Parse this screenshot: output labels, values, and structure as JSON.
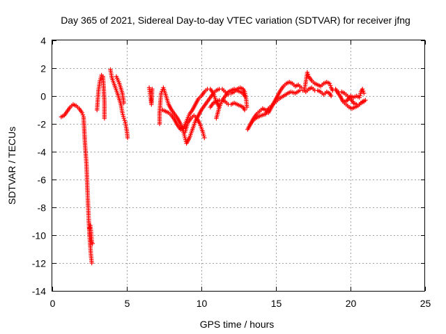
{
  "chart_data": {
    "type": "scatter",
    "title": "Day 365 of 2021, Sidereal Day-to-day VTEC variation (SDTVAR) for receiver jfng",
    "xlabel": "GPS time / hours",
    "ylabel": "SDTVAR / TECUs",
    "xlim": [
      0,
      25
    ],
    "ylim": [
      -14,
      4
    ],
    "xticks": [
      0,
      5,
      10,
      15,
      20,
      25
    ],
    "yticks": [
      -14,
      -12,
      -10,
      -8,
      -6,
      -4,
      -2,
      0,
      2,
      4
    ],
    "grid": true,
    "marker": "+",
    "color": "#ff0000",
    "series": [
      {
        "name": "SDTVAR",
        "segments": [
          [
            [
              0.6,
              -1.5
            ],
            [
              0.8,
              -1.4
            ],
            [
              1.0,
              -1.1
            ],
            [
              1.2,
              -0.8
            ],
            [
              1.4,
              -0.6
            ],
            [
              1.6,
              -0.7
            ],
            [
              1.8,
              -0.9
            ],
            [
              2.0,
              -1.2
            ],
            [
              2.1,
              -1.5
            ],
            [
              2.15,
              -2.5
            ],
            [
              2.2,
              -3.5
            ],
            [
              2.3,
              -5.0
            ],
            [
              2.35,
              -6.5
            ],
            [
              2.4,
              -7.8
            ],
            [
              2.45,
              -9.0
            ],
            [
              2.5,
              -10.0
            ],
            [
              2.55,
              -10.8
            ],
            [
              2.6,
              -11.5
            ],
            [
              2.65,
              -12.0
            ]
          ],
          [
            [
              2.5,
              -9.5
            ],
            [
              2.55,
              -9.3
            ],
            [
              2.6,
              -9.8
            ],
            [
              2.65,
              -10.5
            ],
            [
              2.7,
              -10.6
            ]
          ],
          [
            [
              3.0,
              -1.0
            ],
            [
              3.05,
              -0.3
            ],
            [
              3.1,
              0.4
            ],
            [
              3.2,
              1.1
            ],
            [
              3.3,
              1.5
            ],
            [
              3.4,
              1.4
            ],
            [
              3.45,
              0.6
            ],
            [
              3.5,
              -0.5
            ],
            [
              3.5,
              -1.6
            ]
          ],
          [
            [
              3.9,
              1.9
            ],
            [
              4.0,
              1.3
            ],
            [
              4.2,
              0.7
            ],
            [
              4.4,
              0.1
            ],
            [
              4.6,
              -0.6
            ],
            [
              4.7,
              -1.2
            ],
            [
              4.8,
              -1.6
            ],
            [
              4.9,
              -1.9
            ],
            [
              5.0,
              -2.5
            ],
            [
              5.05,
              -3.0
            ]
          ],
          [
            [
              4.3,
              1.4
            ],
            [
              4.5,
              0.9
            ],
            [
              4.7,
              0.2
            ],
            [
              4.8,
              -0.5
            ]
          ],
          [
            [
              6.5,
              0.6
            ],
            [
              6.55,
              0.2
            ],
            [
              6.6,
              -0.2
            ],
            [
              6.65,
              -0.6
            ],
            [
              6.7,
              0.5
            ]
          ],
          [
            [
              7.2,
              -2.0
            ],
            [
              7.2,
              -1.2
            ],
            [
              7.25,
              -0.4
            ],
            [
              7.3,
              0.2
            ],
            [
              7.45,
              0.6
            ],
            [
              7.6,
              0.1
            ],
            [
              7.8,
              -0.6
            ],
            [
              8.0,
              -1.0
            ],
            [
              8.2,
              -1.3
            ],
            [
              8.4,
              -1.6
            ],
            [
              8.6,
              -2.0
            ],
            [
              8.8,
              -2.6
            ],
            [
              8.9,
              -3.0
            ],
            [
              9.0,
              -3.4
            ],
            [
              9.2,
              -3.0
            ],
            [
              9.4,
              -2.4
            ],
            [
              9.6,
              -1.8
            ],
            [
              9.8,
              -1.4
            ],
            [
              10.0,
              -1.0
            ],
            [
              10.2,
              -0.7
            ],
            [
              10.4,
              -0.4
            ],
            [
              10.6,
              -0.1
            ],
            [
              10.8,
              0.2
            ],
            [
              11.0,
              0.4
            ],
            [
              11.2,
              0.5
            ],
            [
              11.4,
              0.5
            ],
            [
              11.6,
              0.3
            ],
            [
              11.8,
              0.1
            ]
          ],
          [
            [
              7.4,
              -1.0
            ],
            [
              7.6,
              -1.1
            ],
            [
              7.8,
              -1.2
            ],
            [
              8.0,
              -1.4
            ],
            [
              8.2,
              -1.7
            ],
            [
              8.4,
              -2.1
            ],
            [
              8.6,
              -2.4
            ],
            [
              8.8,
              -2.3
            ],
            [
              9.0,
              -1.8
            ],
            [
              9.2,
              -1.3
            ],
            [
              9.4,
              -1.0
            ],
            [
              9.6,
              -0.6
            ],
            [
              9.8,
              -0.2
            ],
            [
              10.0,
              0.0
            ],
            [
              10.2,
              0.3
            ],
            [
              10.4,
              0.5
            ],
            [
              10.6,
              0.5
            ],
            [
              10.8,
              0.2
            ],
            [
              11.0,
              -0.4
            ],
            [
              11.2,
              -0.8
            ]
          ],
          [
            [
              8.9,
              -2.6
            ],
            [
              9.1,
              -1.9
            ],
            [
              9.3,
              -1.6
            ],
            [
              9.5,
              -1.4
            ],
            [
              9.7,
              -1.6
            ],
            [
              9.9,
              -2.0
            ],
            [
              10.1,
              -2.6
            ],
            [
              10.2,
              -3.0
            ]
          ],
          [
            [
              10.6,
              -0.8
            ],
            [
              10.8,
              -0.5
            ],
            [
              11.0,
              -0.4
            ],
            [
              11.2,
              -0.3
            ],
            [
              11.4,
              -0.3
            ],
            [
              11.6,
              -0.4
            ],
            [
              11.8,
              -0.6
            ],
            [
              12.0,
              -0.6
            ],
            [
              12.2,
              -0.5
            ],
            [
              12.4,
              -0.6
            ],
            [
              12.6,
              -0.7
            ],
            [
              12.8,
              -0.8
            ],
            [
              12.9,
              -1.0
            ]
          ],
          [
            [
              11.0,
              -1.6
            ],
            [
              11.2,
              -0.8
            ],
            [
              11.4,
              -0.3
            ],
            [
              11.6,
              0.0
            ],
            [
              11.8,
              0.3
            ],
            [
              12.0,
              0.4
            ],
            [
              12.2,
              0.5
            ],
            [
              12.4,
              0.4
            ],
            [
              12.6,
              0.3
            ],
            [
              12.8,
              0.2
            ],
            [
              12.9,
              0.0
            ]
          ],
          [
            [
              12.0,
              0.2
            ],
            [
              12.2,
              0.3
            ],
            [
              12.4,
              0.5
            ],
            [
              12.6,
              0.6
            ],
            [
              12.8,
              0.5
            ],
            [
              12.9,
              0.3
            ],
            [
              13.0,
              -0.2
            ],
            [
              13.05,
              -0.8
            ]
          ],
          [
            [
              13.1,
              -2.4
            ],
            [
              13.3,
              -2.0
            ],
            [
              13.5,
              -1.6
            ],
            [
              13.7,
              -1.3
            ],
            [
              13.9,
              -1.1
            ],
            [
              14.1,
              -0.9
            ],
            [
              14.3,
              -1.0
            ],
            [
              14.5,
              -1.2
            ],
            [
              14.7,
              -0.8
            ],
            [
              14.9,
              -0.4
            ],
            [
              15.1,
              0.0
            ],
            [
              15.3,
              0.4
            ],
            [
              15.5,
              0.7
            ],
            [
              15.7,
              0.9
            ],
            [
              15.9,
              1.0
            ],
            [
              16.1,
              0.9
            ],
            [
              16.3,
              0.7
            ],
            [
              16.5,
              0.8
            ],
            [
              16.7,
              0.6
            ]
          ],
          [
            [
              13.3,
              -2.0
            ],
            [
              13.5,
              -1.7
            ],
            [
              13.8,
              -1.5
            ],
            [
              14.0,
              -1.4
            ],
            [
              14.3,
              -1.3
            ],
            [
              14.5,
              -0.9
            ],
            [
              14.8,
              -0.6
            ],
            [
              15.0,
              -0.4
            ],
            [
              15.2,
              -0.2
            ],
            [
              15.5,
              0.0
            ],
            [
              15.8,
              0.2
            ],
            [
              16.0,
              0.3
            ],
            [
              16.3,
              0.2
            ],
            [
              16.6,
              0.4
            ],
            [
              16.8,
              0.4
            ]
          ],
          [
            [
              16.9,
              0.4
            ],
            [
              17.0,
              1.0
            ],
            [
              17.1,
              1.7
            ],
            [
              17.2,
              1.4
            ],
            [
              17.4,
              1.1
            ],
            [
              17.6,
              0.9
            ],
            [
              17.8,
              0.8
            ],
            [
              18.0,
              0.7
            ],
            [
              18.2,
              0.9
            ],
            [
              18.4,
              1.0
            ],
            [
              18.6,
              0.9
            ],
            [
              18.7,
              0.6
            ],
            [
              18.8,
              0.4
            ]
          ],
          [
            [
              17.0,
              0.3
            ],
            [
              17.2,
              0.5
            ],
            [
              17.4,
              0.6
            ],
            [
              17.6,
              0.4
            ],
            [
              17.8,
              0.4
            ],
            [
              18.0,
              0.3
            ],
            [
              18.2,
              0.1
            ],
            [
              18.4,
              0.3
            ],
            [
              18.6,
              0.2
            ],
            [
              18.7,
              0.0
            ]
          ],
          [
            [
              19.0,
              0.5
            ],
            [
              19.1,
              0.3
            ],
            [
              19.3,
              0.0
            ],
            [
              19.5,
              -0.4
            ],
            [
              19.7,
              -0.6
            ],
            [
              19.9,
              -0.8
            ],
            [
              20.1,
              -0.9
            ],
            [
              20.3,
              -0.8
            ],
            [
              20.5,
              -0.7
            ],
            [
              20.7,
              -0.5
            ],
            [
              20.9,
              -0.4
            ]
          ],
          [
            [
              19.2,
              0.3
            ],
            [
              19.4,
              0.3
            ],
            [
              19.6,
              0.2
            ],
            [
              19.8,
              0.0
            ],
            [
              20.0,
              -0.2
            ],
            [
              20.2,
              -0.5
            ],
            [
              20.4,
              -0.6
            ],
            [
              20.6,
              -0.6
            ],
            [
              20.8,
              -0.4
            ],
            [
              21.0,
              -0.3
            ]
          ],
          [
            [
              19.6,
              -0.4
            ],
            [
              19.8,
              -0.3
            ],
            [
              20.0,
              0.0
            ],
            [
              20.2,
              -0.1
            ],
            [
              20.4,
              0.0
            ],
            [
              20.6,
              -0.1
            ],
            [
              20.7,
              0.3
            ],
            [
              20.8,
              0.5
            ],
            [
              20.9,
              0.2
            ]
          ]
        ]
      }
    ]
  }
}
